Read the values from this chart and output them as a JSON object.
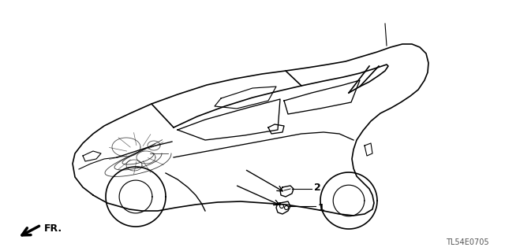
{
  "background_color": "#ffffff",
  "fig_width": 6.4,
  "fig_height": 3.19,
  "dpi": 100,
  "diagram_code": "TL54E0705",
  "fr_label": "FR.",
  "label_1": "1",
  "label_2": "2",
  "line_color": "#000000",
  "text_color": "#000000"
}
